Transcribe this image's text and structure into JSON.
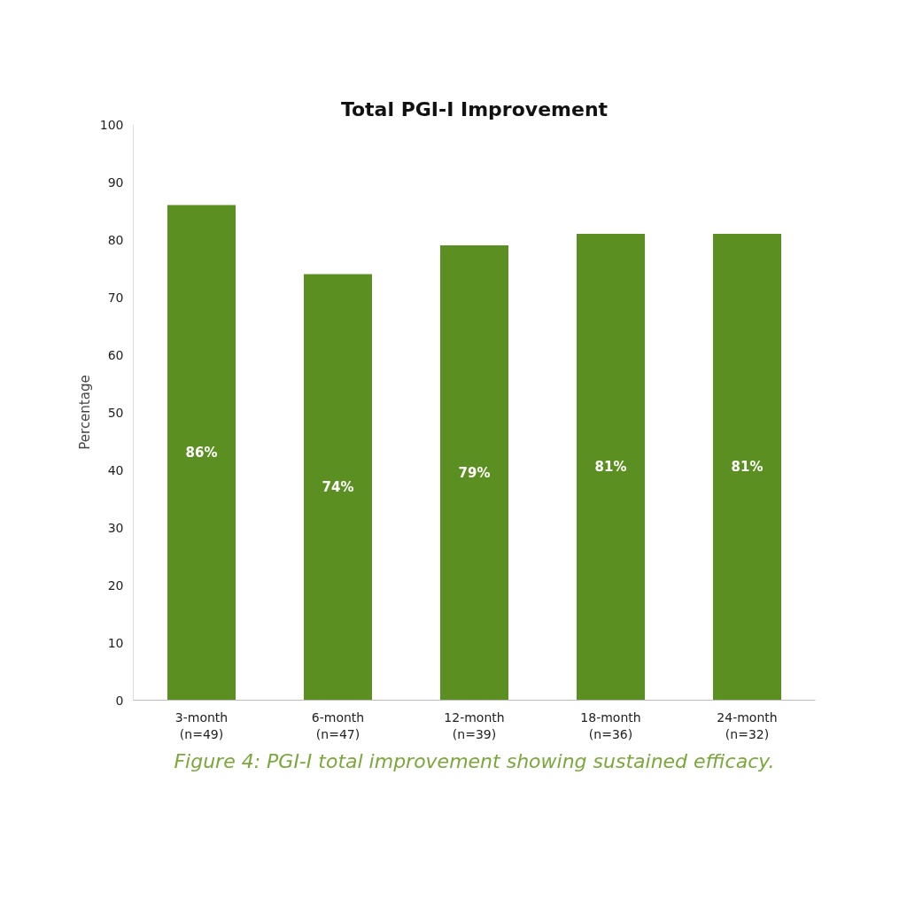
{
  "chart_data": {
    "type": "bar",
    "title": "Total PGI-I Improvement",
    "ylabel": "Percentage",
    "categories": [
      "3-month\n(n=49)",
      "6-month\n(n=47)",
      "12-month\n(n=39)",
      "18-month\n(n=36)",
      "24-month\n(n=32)"
    ],
    "values": [
      86,
      74,
      79,
      81,
      81
    ],
    "color": "#5c8f22",
    "value_labels": [
      "86%",
      "74%",
      "79%",
      "81%",
      "81%"
    ],
    "ylim": [
      0,
      100
    ],
    "yticks": [
      0,
      10,
      20,
      30,
      40,
      50,
      60,
      70,
      80,
      90,
      100
    ],
    "grid": false,
    "annotations": [
      "Figure 4: PGI-I total improvement showing sustained efficacy."
    ]
  }
}
